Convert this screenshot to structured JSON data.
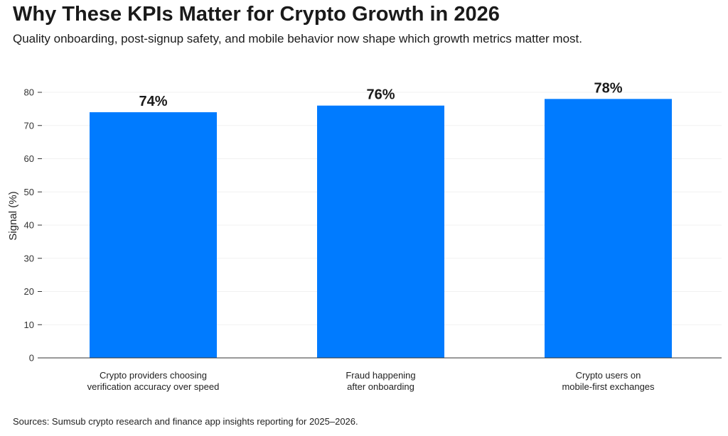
{
  "chart_data": {
    "type": "bar",
    "title": "Why These KPIs Matter for Crypto Growth in 2026",
    "subtitle": "Quality onboarding, post-signup safety, and mobile behavior now shape which growth metrics matter most.",
    "categories": [
      [
        "Crypto providers choosing",
        "verification accuracy over speed"
      ],
      [
        "Fraud happening",
        "after onboarding"
      ],
      [
        "Crypto users on",
        "mobile-first exchanges"
      ]
    ],
    "values": [
      74,
      76,
      78
    ],
    "data_labels": [
      "74%",
      "76%",
      "78%"
    ],
    "xlabel": "",
    "ylabel": "Signal (%)",
    "ylim": [
      0,
      80
    ],
    "yticks": [
      0,
      10,
      20,
      30,
      40,
      50,
      60,
      70,
      80
    ],
    "grid": true,
    "bar_color": "#007BFF",
    "source": "Sources: Sumsub crypto research and finance app insights reporting for 2025–2026."
  }
}
